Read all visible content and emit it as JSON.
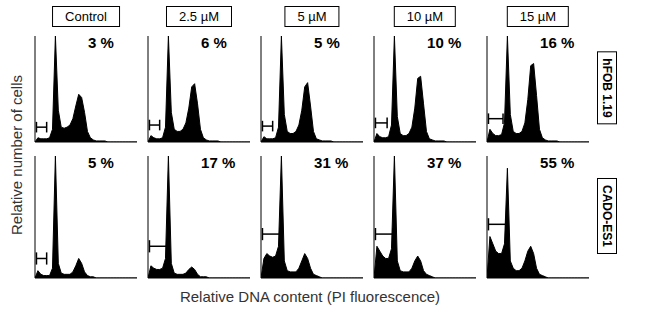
{
  "chart_data": {
    "type": "area",
    "x_label": "Relative DNA content (PI fluorescence)",
    "y_label": "Relative number of cells",
    "columns": [
      "Control",
      "2.5 µM",
      "5 µM",
      "10 µM",
      "15 µM"
    ],
    "x": [
      0,
      1,
      2,
      3,
      4,
      5,
      6,
      7,
      8,
      9,
      10,
      11,
      12,
      13,
      14,
      15,
      16,
      17,
      18,
      19,
      20,
      21,
      22,
      23,
      24,
      25,
      26,
      27,
      28,
      29,
      30,
      31,
      32,
      33,
      34,
      35
    ],
    "xlim": [
      0,
      35
    ],
    "ylim": [
      0,
      100
    ],
    "tick_labels": false,
    "color": "#000000",
    "rows": [
      {
        "name": "hFOB 1.19",
        "panels": [
          {
            "annotation": "3 %",
            "gate": [
              0.5,
              4
            ],
            "values": [
              0,
              4,
              3,
              3,
              3,
              4,
              12,
              100,
              30,
              14,
              13,
              14,
              16,
              22,
              34,
              45,
              42,
              28,
              10,
              4,
              2,
              1,
              1,
              1,
              1,
              0,
              0,
              0,
              0,
              0,
              0,
              0,
              0,
              0,
              0,
              0
            ]
          },
          {
            "annotation": "6 %",
            "gate": [
              0.5,
              4
            ],
            "values": [
              0,
              6,
              4,
              3,
              3,
              4,
              14,
              100,
              28,
              12,
              10,
              10,
              12,
              18,
              32,
              52,
              55,
              36,
              12,
              4,
              2,
              1,
              1,
              1,
              1,
              0,
              0,
              0,
              0,
              0,
              0,
              0,
              0,
              0,
              0,
              0
            ]
          },
          {
            "annotation": "5 %",
            "gate": [
              0.5,
              4
            ],
            "values": [
              0,
              5,
              3,
              3,
              3,
              4,
              14,
              100,
              26,
              10,
              8,
              8,
              10,
              16,
              30,
              52,
              56,
              34,
              10,
              3,
              2,
              1,
              1,
              1,
              1,
              0,
              0,
              0,
              0,
              0,
              0,
              0,
              0,
              0,
              0,
              0
            ]
          },
          {
            "annotation": "10 %",
            "gate": [
              0.5,
              4.5
            ],
            "values": [
              0,
              8,
              5,
              4,
              4,
              5,
              16,
              100,
              24,
              8,
              6,
              6,
              8,
              14,
              32,
              60,
              62,
              36,
              10,
              3,
              2,
              1,
              1,
              1,
              1,
              0,
              0,
              0,
              0,
              0,
              0,
              0,
              0,
              0,
              0,
              0
            ]
          },
          {
            "annotation": "16 %",
            "gate": [
              0.5,
              5.5
            ],
            "values": [
              0,
              12,
              8,
              6,
              6,
              7,
              18,
              100,
              26,
              10,
              8,
              8,
              10,
              18,
              40,
              72,
              74,
              44,
              12,
              4,
              2,
              1,
              1,
              1,
              1,
              0,
              0,
              0,
              0,
              0,
              0,
              0,
              0,
              0,
              0,
              0
            ]
          }
        ]
      },
      {
        "name": "CADO-ES1",
        "panels": [
          {
            "annotation": "5 %",
            "gate": [
              0.5,
              4
            ],
            "values": [
              0,
              6,
              3,
              2,
              2,
              2,
              8,
              100,
              12,
              4,
              3,
              3,
              3,
              5,
              10,
              16,
              12,
              5,
              2,
              1,
              1,
              0,
              0,
              0,
              0,
              0,
              0,
              0,
              0,
              0,
              0,
              0,
              0,
              0,
              0,
              0
            ]
          },
          {
            "annotation": "17 %",
            "gate": [
              0.5,
              6.5
            ],
            "values": [
              0,
              10,
              8,
              7,
              7,
              8,
              16,
              100,
              12,
              4,
              3,
              3,
              3,
              4,
              7,
              9,
              7,
              3,
              1,
              1,
              1,
              0,
              0,
              0,
              0,
              0,
              0,
              0,
              0,
              0,
              0,
              0,
              0,
              0,
              0,
              0
            ]
          },
          {
            "annotation": "31 %",
            "gate": [
              0.5,
              6.5
            ],
            "values": [
              0,
              16,
              20,
              18,
              17,
              18,
              26,
              100,
              14,
              6,
              5,
              5,
              5,
              8,
              14,
              20,
              16,
              8,
              3,
              2,
              1,
              0,
              0,
              0,
              0,
              0,
              0,
              0,
              0,
              0,
              0,
              0,
              0,
              0,
              0,
              0
            ]
          },
          {
            "annotation": "37 %",
            "gate": [
              0.5,
              6.5
            ],
            "values": [
              0,
              26,
              22,
              18,
              16,
              16,
              24,
              100,
              14,
              6,
              5,
              5,
              5,
              8,
              14,
              18,
              14,
              6,
              3,
              2,
              1,
              0,
              0,
              0,
              0,
              0,
              0,
              0,
              0,
              0,
              0,
              0,
              0,
              0,
              0,
              0
            ]
          },
          {
            "annotation": "55 %",
            "gate": [
              0.5,
              6.5
            ],
            "values": [
              0,
              34,
              28,
              22,
              20,
              20,
              28,
              90,
              14,
              8,
              6,
              6,
              8,
              14,
              22,
              26,
              20,
              8,
              3,
              2,
              1,
              0,
              0,
              0,
              0,
              0,
              0,
              0,
              0,
              0,
              0,
              0,
              0,
              0,
              0,
              0
            ]
          }
        ]
      }
    ]
  }
}
